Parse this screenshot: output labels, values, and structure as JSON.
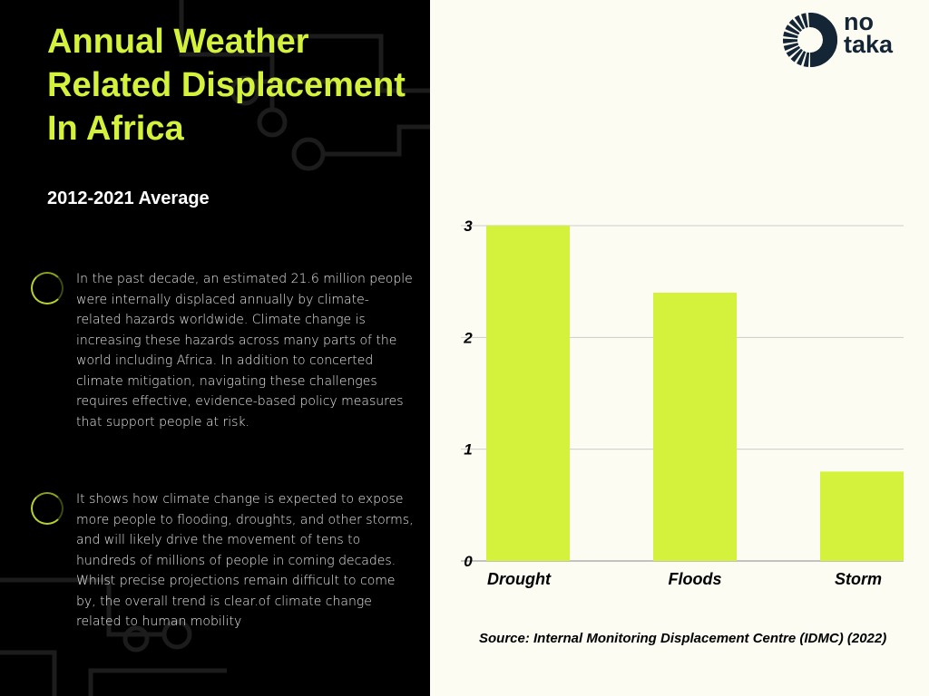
{
  "title": "Annual Weather Related Displacement In Africa",
  "subtitle": "2012-2021 Average",
  "paragraphs": [
    "In the past decade, an estimated 21.6 million people were internally displaced annually by climate-related hazards worldwide. Climate change is increasing these hazards across many parts of the world including Africa. In addition to concerted climate mitigation, navigating these challenges requires effective, evidence-based policy measures that support people at risk.",
    "It shows how climate change is expected to expose more people to flooding, droughts, and other storms, and will likely drive the movement of tens to hundreds of millions of people in coming decades. Whilst precise projections remain difficult to come by, the overall trend is clear.of climate change related to human mobility"
  ],
  "logo": {
    "line1": "no",
    "line2": "taka"
  },
  "source": "Source: Internal Monitoring Displacement Centre (IDMC) (2022)",
  "colors": {
    "accent": "#d4f23c",
    "left_bg": "#000000",
    "right_bg": "#fcfcf3",
    "logo": "#142535"
  },
  "chart_data": {
    "type": "bar",
    "categories": [
      "Drought",
      "Floods",
      "Storm"
    ],
    "values": [
      3.0,
      2.4,
      0.8
    ],
    "yticks": [
      "0",
      "1",
      "2",
      "3"
    ],
    "ylim": [
      0,
      3
    ],
    "grid": true,
    "title": "",
    "xlabel": "",
    "ylabel": ""
  }
}
